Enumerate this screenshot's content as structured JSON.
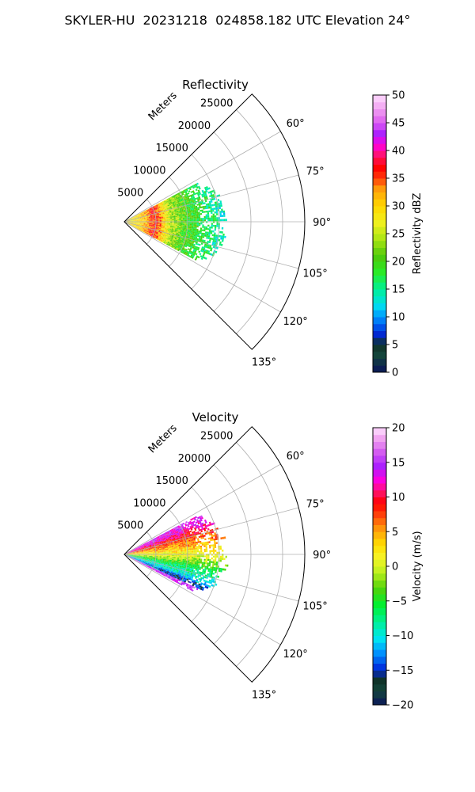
{
  "suptitle": "SKYLER-HU  20231218  024858.182 UTC Elevation 24°",
  "panels": [
    {
      "title": "Reflectivity",
      "radial_axis_label": "Meters",
      "radial_ticks": [
        5000,
        10000,
        15000,
        20000,
        25000
      ],
      "radial_tick_labels": [
        "5000",
        "10000",
        "15000",
        "20000",
        "25000"
      ],
      "angle_ticks": [
        60,
        75,
        90,
        105,
        120,
        135
      ],
      "angle_tick_labels": [
        "60°",
        "75°",
        "90°",
        "105°",
        "120°",
        "135°"
      ],
      "colorbar": {
        "label": "Reflectivity dBZ",
        "min": 0,
        "max": 50,
        "ticks": [
          0,
          5,
          10,
          15,
          20,
          25,
          30,
          35,
          40,
          45,
          50
        ],
        "tick_labels": [
          "0",
          "5",
          "10",
          "15",
          "20",
          "25",
          "30",
          "35",
          "40",
          "45",
          "50"
        ]
      }
    },
    {
      "title": "Velocity",
      "radial_axis_label": "Meters",
      "radial_ticks": [
        5000,
        10000,
        15000,
        20000,
        25000
      ],
      "radial_tick_labels": [
        "5000",
        "10000",
        "15000",
        "20000",
        "25000"
      ],
      "angle_ticks": [
        60,
        75,
        90,
        105,
        120,
        135
      ],
      "angle_tick_labels": [
        "60°",
        "75°",
        "90°",
        "105°",
        "120°",
        "135°"
      ],
      "colorbar": {
        "label": "Velocity (m/s)",
        "min": -20,
        "max": 20,
        "ticks": [
          -20,
          -15,
          -10,
          -5,
          0,
          5,
          10,
          15,
          20
        ],
        "tick_labels": [
          "−20",
          "−15",
          "−10",
          "−5",
          "0",
          "5",
          "10",
          "15",
          "20"
        ]
      }
    }
  ],
  "chart_data": [
    {
      "type": "heatmap",
      "projection": "polar sector",
      "title": "Reflectivity",
      "theta_range_deg": [
        45,
        135
      ],
      "r_range_m": [
        0,
        28500
      ],
      "data_azimuth_range_deg": [
        62,
        118
      ],
      "data_range_extent_m": [
        0,
        16000
      ],
      "colorbar_label": "Reflectivity dBZ",
      "value_range": [
        0,
        50
      ],
      "range_profile": [
        {
          "range_m": 1000,
          "approx_value_dbz": 28
        },
        {
          "range_m": 3000,
          "approx_value_dbz": 30
        },
        {
          "range_m": 5000,
          "approx_value_dbz": 37
        },
        {
          "range_m": 7500,
          "approx_value_dbz": 24
        },
        {
          "range_m": 10000,
          "approx_value_dbz": 20
        },
        {
          "range_m": 13000,
          "approx_value_dbz": 17
        },
        {
          "range_m": 15500,
          "approx_value_dbz": 14
        }
      ]
    },
    {
      "type": "heatmap",
      "projection": "polar sector",
      "title": "Velocity",
      "theta_range_deg": [
        45,
        135
      ],
      "r_range_m": [
        0,
        28500
      ],
      "data_azimuth_range_deg": [
        62,
        118
      ],
      "data_range_extent_m": [
        0,
        16000
      ],
      "colorbar_label": "Velocity (m/s)",
      "value_range": [
        -20,
        20
      ],
      "azimuth_profile": [
        {
          "azimuth_deg": 65,
          "approx_value_ms": 14
        },
        {
          "azimuth_deg": 75,
          "approx_value_ms": 8
        },
        {
          "azimuth_deg": 85,
          "approx_value_ms": 3
        },
        {
          "azimuth_deg": 92,
          "approx_value_ms": 0
        },
        {
          "azimuth_deg": 100,
          "approx_value_ms": -6
        },
        {
          "azimuth_deg": 108,
          "approx_value_ms": -10
        },
        {
          "azimuth_deg": 113,
          "approx_value_ms": -14
        },
        {
          "azimuth_deg": 117,
          "approx_value_ms": 16
        }
      ]
    }
  ]
}
